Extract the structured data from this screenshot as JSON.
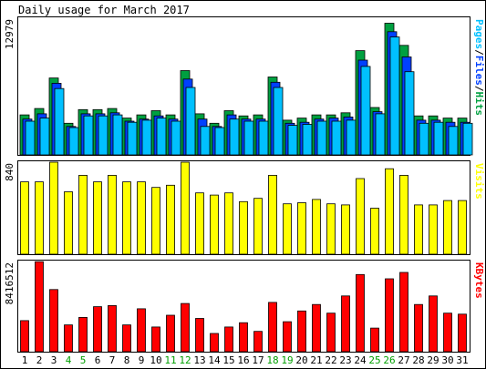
{
  "chart_data": {
    "type": "bar",
    "title": "Daily usage for March 2017",
    "categories": [
      "1",
      "2",
      "3",
      "4",
      "5",
      "6",
      "7",
      "8",
      "9",
      "10",
      "11",
      "12",
      "13",
      "14",
      "15",
      "16",
      "17",
      "18",
      "19",
      "20",
      "21",
      "22",
      "23",
      "24",
      "25",
      "26",
      "27",
      "28",
      "29",
      "30",
      "31"
    ],
    "weekend_days": [
      "4",
      "5",
      "11",
      "12",
      "18",
      "19",
      "25",
      "26"
    ],
    "colors": {
      "background": "#ffffff",
      "panel_bg": "#ffffff",
      "hits": "#00a040",
      "files": "#0040ff",
      "pages": "#00c0ff",
      "visits": "#ffff00",
      "kbytes": "#ff0000",
      "weekday_label": "#000000",
      "weekend_label": "#00a000",
      "title": "#000000"
    },
    "panels": [
      {
        "name": "hits-panel",
        "ymax_label": "12979",
        "ylim": [
          0,
          12979
        ],
        "right_label": [
          {
            "text": "Pages",
            "color": "#00c0ff"
          },
          {
            "text": "/",
            "color": "#000000"
          },
          {
            "text": "Files",
            "color": "#0040ff"
          },
          {
            "text": "/",
            "color": "#000000"
          },
          {
            "text": "Hits",
            "color": "#00a040"
          }
        ],
        "series": [
          {
            "name": "Hits",
            "color": "#00a040",
            "values": [
              3800,
              4400,
              7300,
              3000,
              4300,
              4300,
              4400,
              3500,
              3800,
              4200,
              3800,
              8000,
              3900,
              3000,
              4200,
              3700,
              3800,
              7400,
              3300,
              3500,
              3800,
              3800,
              4000,
              9900,
              4500,
              12500,
              10400,
              3700,
              3700,
              3500,
              3500
            ]
          },
          {
            "name": "Files",
            "color": "#0040ff",
            "values": [
              3400,
              3900,
              6800,
              2700,
              3900,
              3900,
              4000,
              3200,
              3400,
              3700,
              3400,
              7200,
              3400,
              2700,
              3800,
              3400,
              3400,
              6900,
              3000,
              3100,
              3400,
              3500,
              3600,
              9000,
              4100,
              11700,
              9300,
              3300,
              3300,
              3100,
              3100
            ]
          },
          {
            "name": "Pages",
            "color": "#00c0ff",
            "values": [
              3200,
              3500,
              6300,
              2600,
              3700,
              3700,
              3800,
              3100,
              3300,
              3500,
              3200,
              6400,
              2700,
              2600,
              3400,
              3200,
              3200,
              6400,
              2800,
              2900,
              3200,
              3200,
              3300,
              8400,
              3900,
              11200,
              7900,
              3000,
              3100,
              2700,
              3000
            ]
          }
        ]
      },
      {
        "name": "visits-panel",
        "ymax_label": "840",
        "ylim": [
          0,
          840
        ],
        "right_label": [
          {
            "text": "Visits",
            "color": "#ffff00"
          }
        ],
        "series": [
          {
            "name": "Visits",
            "color": "#ffff00",
            "values": [
              660,
              660,
              840,
              570,
              720,
              660,
              720,
              660,
              660,
              610,
              630,
              840,
              560,
              540,
              560,
              480,
              510,
              720,
              460,
              470,
              500,
              460,
              450,
              690,
              420,
              780,
              720,
              450,
              450,
              490,
              490
            ]
          }
        ]
      },
      {
        "name": "kbytes-panel",
        "ymax_label": "8416512",
        "ylim": [
          0,
          8416512
        ],
        "right_label": [
          {
            "text": "KBytes",
            "color": "#ff0000"
          }
        ],
        "series": [
          {
            "name": "KBytes",
            "color": "#ff0000",
            "values": [
              2900000,
              8400000,
              5800000,
              2500000,
              3200000,
              4200000,
              4300000,
              2500000,
              4000000,
              2300000,
              3400000,
              4500000,
              3100000,
              1700000,
              2300000,
              2700000,
              1900000,
              4600000,
              2800000,
              3800000,
              4400000,
              3600000,
              5200000,
              7200000,
              2200000,
              6800000,
              7400000,
              4400000,
              5200000,
              3600000,
              3500000
            ]
          }
        ]
      }
    ]
  }
}
